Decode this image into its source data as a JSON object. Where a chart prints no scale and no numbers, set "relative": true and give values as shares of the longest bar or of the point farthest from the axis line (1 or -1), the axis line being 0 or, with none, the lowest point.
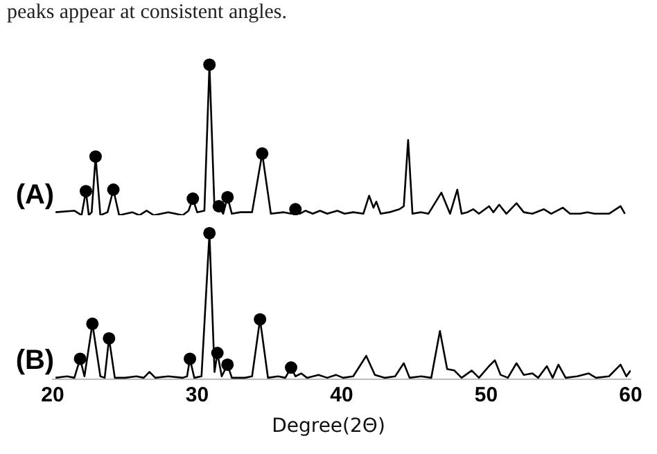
{
  "chart_data": [
    {
      "type": "line",
      "relative": true,
      "xlim": [
        20,
        60
      ],
      "xticks": [
        20,
        30,
        40,
        50,
        60
      ],
      "tick_labels": false,
      "grid": false,
      "legend": false,
      "annotations": [
        "peaks appear at consistent angles."
      ],
      "series": [
        {
          "name": "(A)",
          "type": "line",
          "color": "#000000",
          "marker": "none",
          "x": [
            20.2,
            21.5,
            22.0,
            22.3,
            22.5,
            22.7,
            22.97,
            23.3,
            23.8,
            24.2,
            24.6,
            25.5,
            26.0,
            26.5,
            27.0,
            28.0,
            29.0,
            29.4,
            29.7,
            30.0,
            30.5,
            30.85,
            31.2,
            31.5,
            31.8,
            32.1,
            32.4,
            33.0,
            33.8,
            34.5,
            35.1,
            36.0,
            36.5,
            36.8,
            37.1,
            37.5,
            38.0,
            38.5,
            39.0,
            39.7,
            40.2,
            40.8,
            41.5,
            41.9,
            42.2,
            42.4,
            42.7,
            43.3,
            44.0,
            44.3,
            44.6,
            44.9,
            45.5,
            46.0,
            46.9,
            47.5,
            48.0,
            48.3,
            48.7,
            49.1,
            49.5,
            50.2,
            50.5,
            50.9,
            51.4,
            52.1,
            52.6,
            53.2,
            54.0,
            54.5,
            55.3,
            55.8,
            56.5,
            57.0,
            57.5,
            58.5,
            59.3,
            59.6
          ],
          "values": [
            0.02,
            0.03,
            0,
            0.16,
            0,
            0.02,
            0.39,
            0,
            0.02,
            0.17,
            0,
            0.02,
            0,
            0.03,
            0,
            0.02,
            0,
            0.03,
            0.11,
            0.02,
            0.03,
            1,
            0.04,
            0.06,
            0.01,
            0.12,
            0.01,
            0.02,
            0.02,
            0.41,
            0.01,
            0.02,
            0.01,
            0.04,
            0.01,
            0.03,
            0.01,
            0.03,
            0.01,
            0.03,
            0.01,
            0.02,
            0.01,
            0.13,
            0.05,
            0.09,
            0.01,
            0.02,
            0.04,
            0.06,
            0.5,
            0.01,
            0.02,
            0.01,
            0.15,
            0.01,
            0.17,
            0.01,
            0.02,
            0.04,
            0.01,
            0.06,
            0.02,
            0.07,
            0.01,
            0.08,
            0.02,
            0.01,
            0.04,
            0.01,
            0.05,
            0.01,
            0.01,
            0.02,
            0.01,
            0.01,
            0.06,
            0.01
          ]
        },
        {
          "type": "scatter",
          "color": "#000000",
          "marker": "circle",
          "x": [
            22.3,
            22.97,
            24.2,
            29.7,
            30.85,
            31.5,
            32.1,
            34.5,
            36.8
          ],
          "values": [
            0.16,
            0.39,
            0.17,
            0.11,
            1,
            0.06,
            0.12,
            0.41,
            0.04
          ]
        }
      ]
    },
    {
      "type": "line",
      "relative": true,
      "xlim": [
        20,
        60
      ],
      "xticks": [
        20,
        30,
        40,
        50,
        60
      ],
      "tick_labels": "x",
      "grid": false,
      "legend": false,
      "xlabel": "Degree(2Θ)",
      "series": [
        {
          "name": "(B)",
          "type": "line",
          "color": "#000000",
          "marker": "none",
          "x": [
            20.2,
            21.0,
            21.5,
            21.9,
            22.2,
            22.75,
            23.3,
            23.6,
            23.9,
            24.3,
            25.0,
            25.8,
            26.3,
            26.7,
            27.1,
            28.0,
            29.0,
            29.3,
            29.5,
            29.8,
            30.3,
            30.85,
            31.2,
            31.4,
            31.7,
            32.1,
            32.4,
            33.3,
            33.8,
            34.35,
            34.9,
            35.6,
            36.1,
            36.5,
            36.8,
            37.2,
            37.6,
            38.4,
            39.0,
            39.6,
            40.1,
            40.8,
            41.7,
            42.3,
            43.0,
            43.7,
            44.3,
            44.7,
            45.5,
            46.2,
            46.8,
            47.3,
            47.8,
            48.3,
            49.0,
            49.5,
            50.2,
            50.6,
            51.0,
            51.5,
            52.1,
            52.6,
            53.2,
            53.6,
            54.2,
            54.6,
            55.0,
            55.5,
            56.3,
            57.1,
            57.6,
            58.5,
            59.3,
            59.7,
            60.0
          ],
          "values": [
            0.01,
            0.02,
            0.01,
            0.14,
            0.02,
            0.38,
            0.02,
            0.01,
            0.28,
            0.01,
            0.01,
            0.02,
            0.01,
            0.05,
            0.01,
            0.02,
            0.01,
            0.02,
            0.14,
            0.01,
            0.02,
            1,
            0.05,
            0.18,
            0.02,
            0.1,
            0.01,
            0.01,
            0.02,
            0.41,
            0.01,
            0.02,
            0.01,
            0.08,
            0.02,
            0.04,
            0.01,
            0.03,
            0.01,
            0.03,
            0.01,
            0.02,
            0.16,
            0.03,
            0.01,
            0.02,
            0.11,
            0.01,
            0.02,
            0.01,
            0.33,
            0.07,
            0.06,
            0.01,
            0.06,
            0.01,
            0.09,
            0.13,
            0.03,
            0.01,
            0.11,
            0.03,
            0.04,
            0.01,
            0.09,
            0.01,
            0.1,
            0.01,
            0.02,
            0.04,
            0.01,
            0.02,
            0.1,
            0.02,
            0.06
          ]
        },
        {
          "type": "scatter",
          "color": "#000000",
          "marker": "circle",
          "x": [
            21.9,
            22.75,
            23.9,
            29.5,
            30.85,
            31.4,
            32.1,
            34.35,
            36.5
          ],
          "values": [
            0.14,
            0.38,
            0.28,
            0.14,
            1,
            0.18,
            0.1,
            0.41,
            0.08
          ]
        }
      ]
    }
  ]
}
